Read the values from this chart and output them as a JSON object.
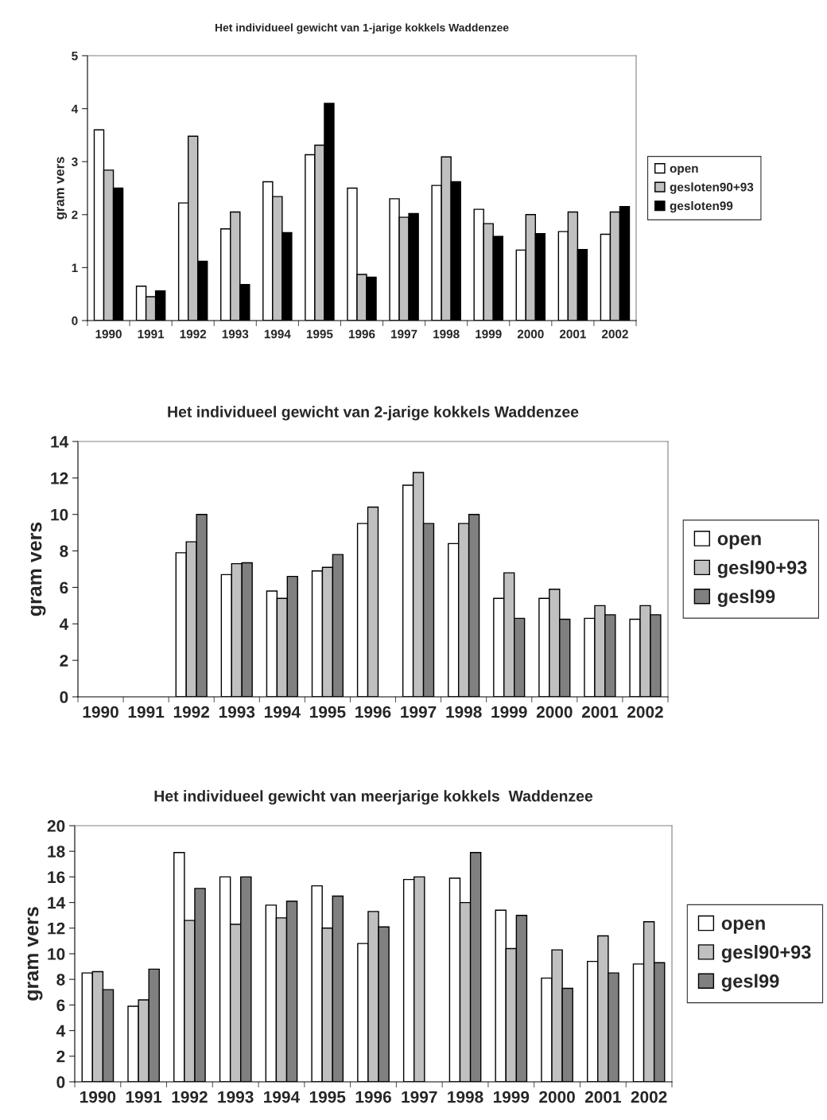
{
  "chart_data": [
    {
      "type": "bar",
      "title": "Het individueel gewicht van 1-jarige kokkels Waddenzee",
      "ylabel": "gram vers",
      "categories": [
        "1990",
        "1991",
        "1992",
        "1993",
        "1994",
        "1995",
        "1996",
        "1997",
        "1998",
        "1999",
        "2000",
        "2001",
        "2002"
      ],
      "ylim": [
        0,
        5
      ],
      "yticks": [
        0,
        1,
        2,
        3,
        4,
        5
      ],
      "grid": false,
      "legend": "right",
      "series": [
        {
          "name": "open",
          "color": "#ffffff",
          "values": [
            3.6,
            0.65,
            2.22,
            1.73,
            2.62,
            3.13,
            2.5,
            2.3,
            2.55,
            2.1,
            1.33,
            1.68,
            1.63
          ]
        },
        {
          "name": "gesloten90+93",
          "color": "#c0c0c0",
          "values": [
            2.84,
            0.45,
            3.48,
            2.05,
            2.34,
            3.31,
            0.87,
            1.95,
            3.09,
            1.83,
            2.0,
            2.05,
            2.05
          ]
        },
        {
          "name": "gesloten99",
          "color": "#000000",
          "values": [
            2.5,
            0.56,
            1.12,
            0.68,
            1.66,
            4.1,
            0.82,
            2.02,
            2.62,
            1.59,
            1.64,
            1.34,
            2.15
          ]
        }
      ]
    },
    {
      "type": "bar",
      "title": "Het individueel gewicht van 2-jarige kokkels Waddenzee",
      "ylabel": "gram vers",
      "categories": [
        "1990",
        "1991",
        "1992",
        "1993",
        "1994",
        "1995",
        "1996",
        "1997",
        "1998",
        "1999",
        "2000",
        "2001",
        "2002"
      ],
      "ylim": [
        0,
        14
      ],
      "yticks": [
        0,
        2,
        4,
        6,
        8,
        10,
        12,
        14
      ],
      "grid": false,
      "legend": "right",
      "series": [
        {
          "name": "open",
          "color": "#ffffff",
          "values": [
            null,
            null,
            7.9,
            6.7,
            5.8,
            6.9,
            9.5,
            11.6,
            8.4,
            5.4,
            5.4,
            4.3,
            4.25
          ]
        },
        {
          "name": "gesl90+93",
          "color": "#c0c0c0",
          "values": [
            null,
            null,
            8.5,
            7.3,
            5.4,
            7.1,
            10.4,
            12.3,
            9.5,
            6.8,
            5.9,
            5.0,
            5.0
          ]
        },
        {
          "name": "gesl99",
          "color": "#808080",
          "values": [
            null,
            null,
            10.0,
            7.35,
            6.6,
            7.8,
            null,
            9.5,
            10.0,
            4.3,
            4.25,
            4.5,
            4.5
          ]
        }
      ]
    },
    {
      "type": "bar",
      "title": "Het individueel gewicht van meerjarige kokkels  Waddenzee",
      "ylabel": "gram vers",
      "categories": [
        "1990",
        "1991",
        "1992",
        "1993",
        "1994",
        "1995",
        "1996",
        "1997",
        "1998",
        "1999",
        "2000",
        "2001",
        "2002"
      ],
      "ylim": [
        0,
        20
      ],
      "yticks": [
        0,
        2,
        4,
        6,
        8,
        10,
        12,
        14,
        16,
        18,
        20
      ],
      "grid": false,
      "legend": "right",
      "series": [
        {
          "name": "open",
          "color": "#ffffff",
          "values": [
            8.5,
            5.9,
            17.9,
            16.0,
            13.8,
            15.3,
            10.8,
            15.8,
            15.9,
            13.4,
            8.1,
            9.4,
            9.2
          ]
        },
        {
          "name": "gesl90+93",
          "color": "#c0c0c0",
          "values": [
            8.6,
            6.4,
            12.6,
            12.3,
            12.8,
            12.0,
            13.3,
            16.0,
            14.0,
            10.4,
            10.3,
            11.4,
            12.5
          ]
        },
        {
          "name": "gesl99",
          "color": "#808080",
          "values": [
            7.2,
            8.8,
            15.1,
            16.0,
            14.1,
            14.5,
            12.1,
            null,
            17.9,
            13.0,
            7.3,
            8.5,
            9.3
          ]
        }
      ]
    }
  ]
}
